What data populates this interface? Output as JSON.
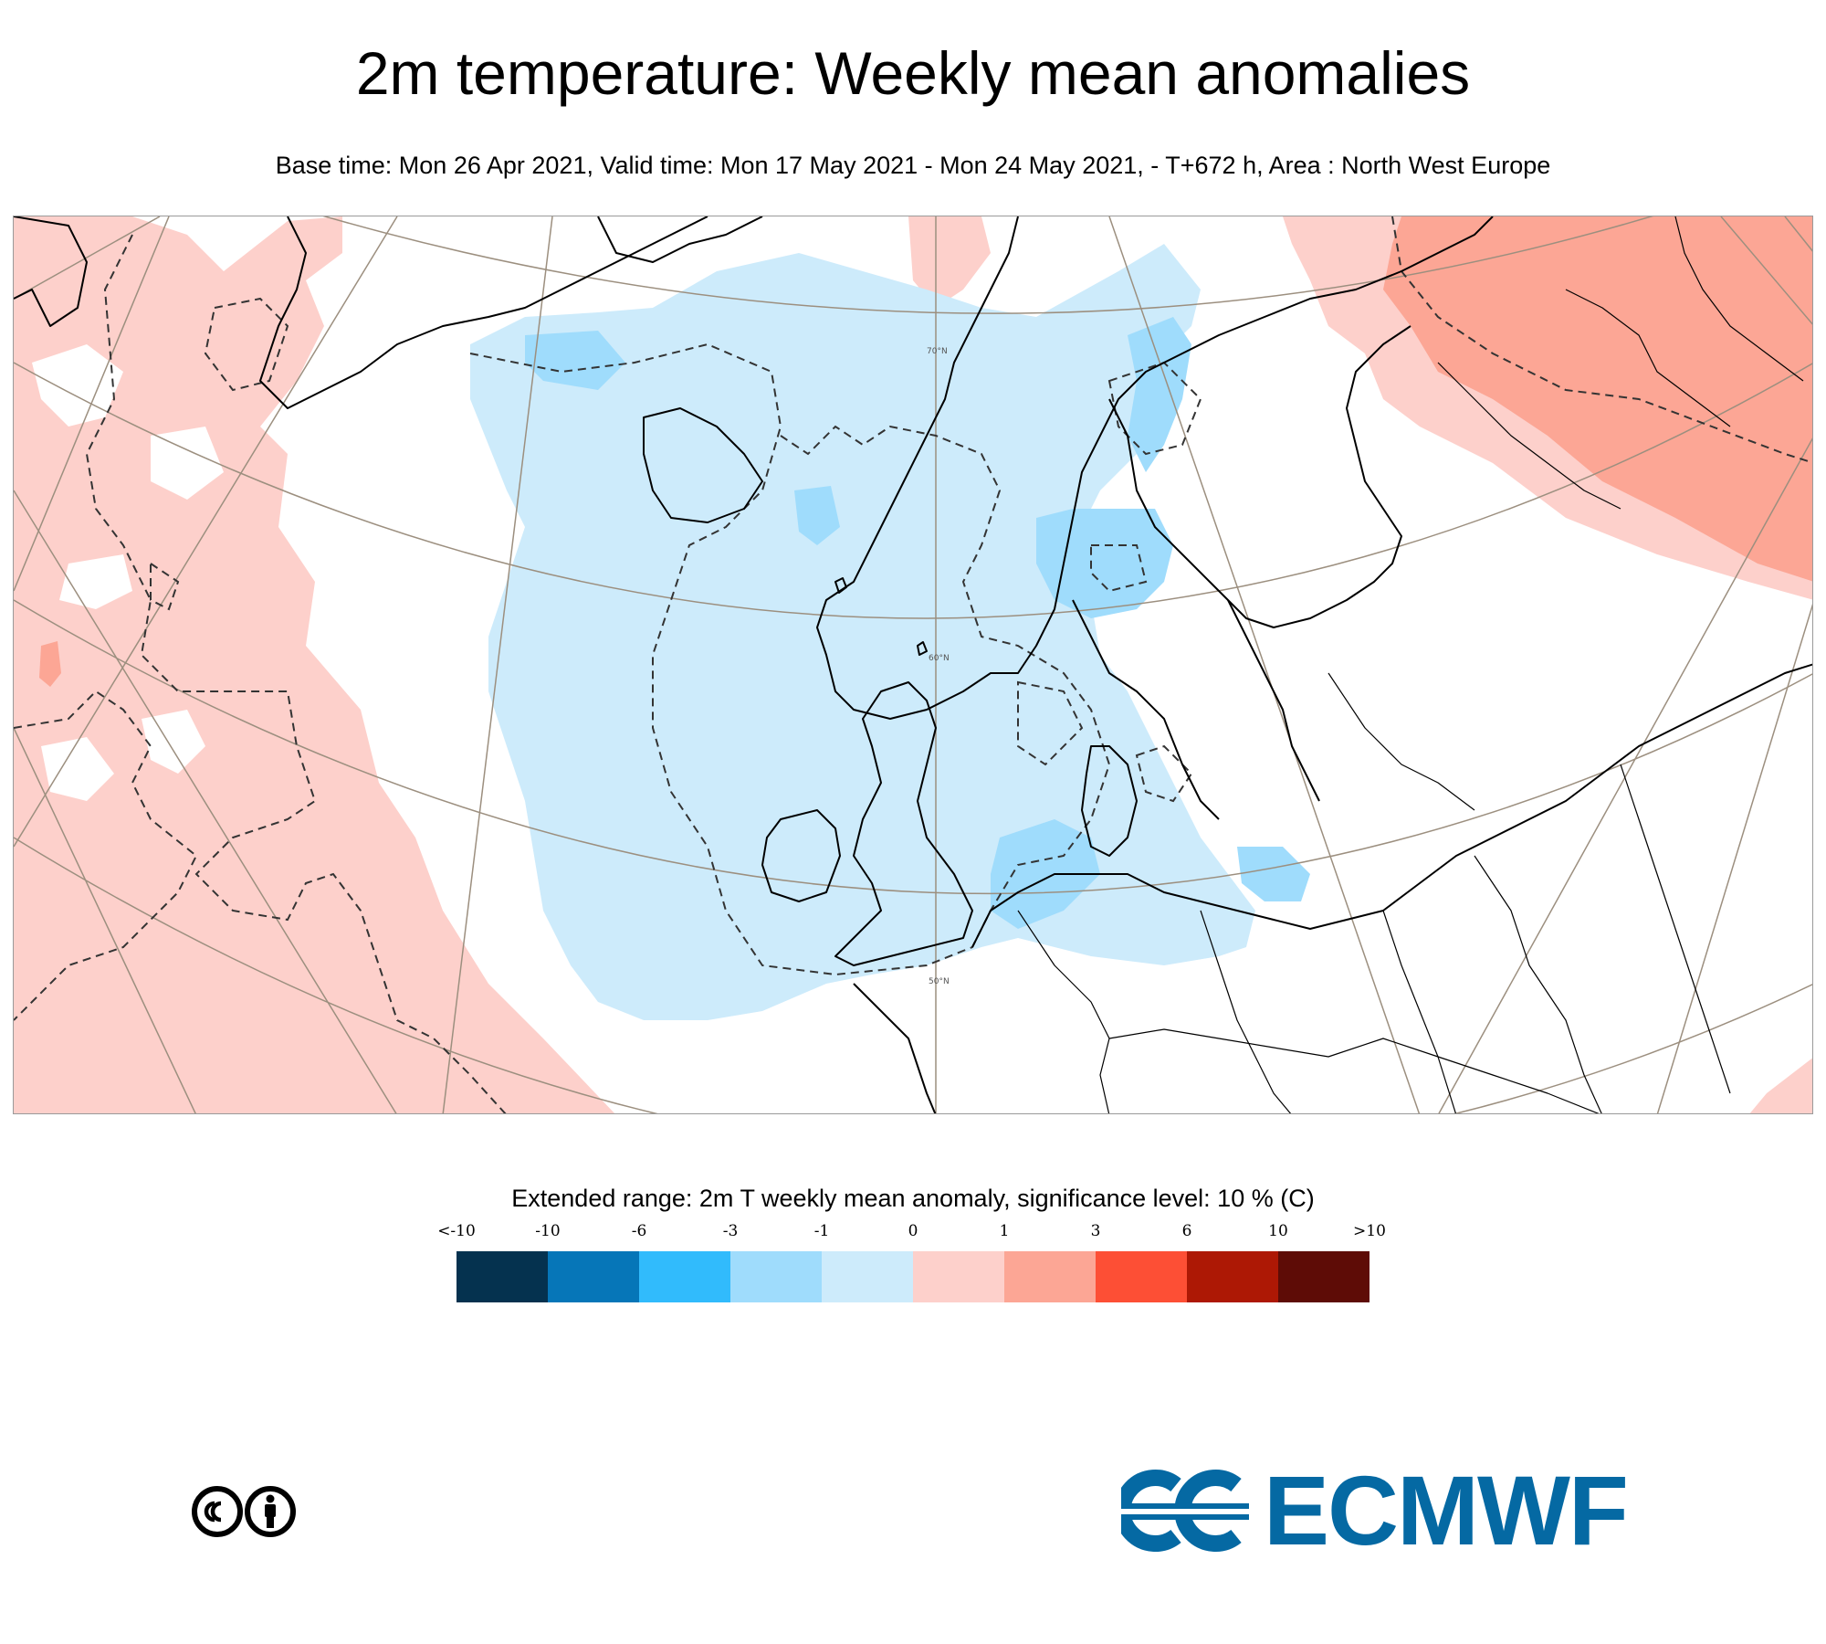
{
  "title": "2m temperature: Weekly mean anomalies",
  "subtitle": "Base time: Mon 26 Apr 2021, Valid time: Mon 17 May 2021 - Mon 24 May 2021, - T+672 h, Area : North West Europe",
  "map": {
    "area": "North West Europe",
    "lat_labels": [
      "70°N",
      "60°N",
      "50°N"
    ],
    "colors": {
      "frame": "#9a9a9a",
      "graticule": "#9c8f7f",
      "coast": "#000000",
      "sig_contour": "#333333"
    }
  },
  "legend": {
    "title": "Extended range: 2m T weekly mean anomaly, significance level: 10 % (C)",
    "ticks": [
      "<-10",
      "-10",
      "-6",
      "-3",
      "-1",
      "0",
      "1",
      "3",
      "6",
      "10",
      ">10"
    ],
    "colors": [
      "#05324f",
      "#0676b8",
      "#31bbfc",
      "#9fdcfc",
      "#cdebfb",
      "#fdd0cb",
      "#fca695",
      "#fd4f35",
      "#ad1805",
      "#5e0c06"
    ]
  },
  "license_icon": "cc-by-icon",
  "logo": {
    "text": "ECMWF",
    "color": "#0569a3"
  }
}
